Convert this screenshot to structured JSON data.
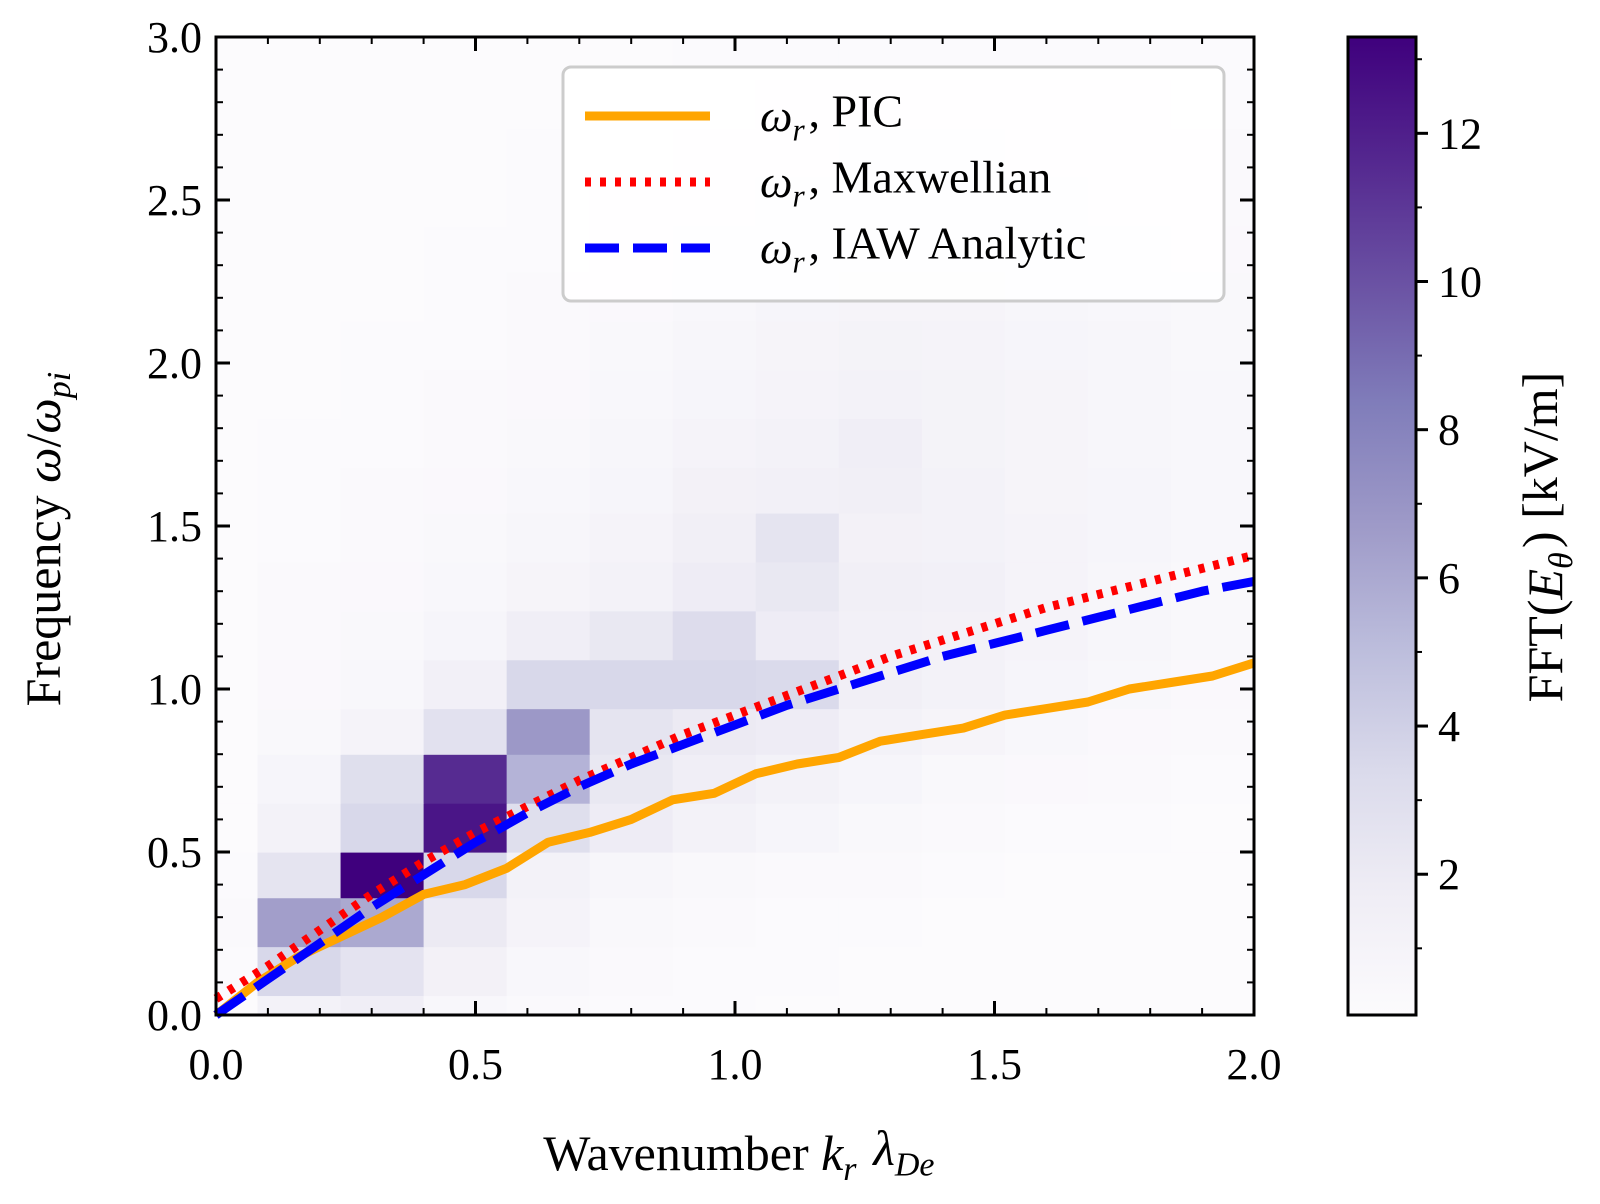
{
  "chart_data": {
    "type": "heatmap",
    "xlabel": "Wavenumber k_r λ_De",
    "ylabel": "Frequency ω/ω_pi",
    "colorbar_label": "FFT(E_θ) [kV/m]",
    "xlim": [
      0.0,
      2.0
    ],
    "ylim": [
      0.0,
      3.0
    ],
    "xticks": [
      "0.0",
      "0.5",
      "1.0",
      "1.5",
      "2.0"
    ],
    "yticks": [
      "0.0",
      "0.5",
      "1.0",
      "1.5",
      "2.0",
      "2.5",
      "3.0"
    ],
    "colorbar_ticks": [
      "2",
      "4",
      "6",
      "8",
      "10",
      "12"
    ],
    "colorbar_range": [
      0.1,
      13.3
    ],
    "colormap": "Purples",
    "grid": false,
    "legend_position": "top-right",
    "heatmap": {
      "x_edges": [
        0.0,
        0.08,
        0.24,
        0.4,
        0.56,
        0.72,
        0.88,
        1.04,
        1.2,
        1.36,
        1.52,
        1.68,
        1.84,
        2.0
      ],
      "y_edges": [
        0.0,
        0.06,
        0.21,
        0.36,
        0.5,
        0.65,
        0.8,
        0.94,
        1.09,
        1.24,
        1.39,
        1.54,
        1.68,
        1.83,
        1.98,
        2.13,
        2.28,
        2.42,
        2.57,
        2.72,
        2.87,
        3.0
      ],
      "values": [
        [
          0.1,
          1.2,
          1.6,
          0.6,
          0.3,
          0.2,
          0.2,
          0.1,
          0.1,
          0.1,
          0.1,
          0.1,
          0.1
        ],
        [
          0.2,
          3.5,
          2.6,
          1.3,
          0.6,
          0.3,
          0.2,
          0.2,
          0.1,
          0.1,
          0.1,
          0.1,
          0.1
        ],
        [
          0.3,
          6.5,
          6.0,
          2.0,
          1.0,
          0.5,
          0.3,
          0.2,
          0.2,
          0.1,
          0.1,
          0.1,
          0.1
        ],
        [
          0.2,
          2.5,
          13.3,
          3.5,
          1.2,
          0.7,
          0.5,
          0.3,
          0.3,
          0.2,
          0.1,
          0.1,
          0.1
        ],
        [
          0.1,
          1.2,
          3.5,
          12.4,
          3.0,
          1.8,
          1.2,
          0.8,
          0.5,
          0.3,
          0.2,
          0.2,
          0.1
        ],
        [
          0.1,
          0.8,
          3.0,
          11.5,
          5.5,
          2.2,
          1.6,
          1.2,
          0.8,
          0.5,
          0.4,
          0.3,
          0.2
        ],
        [
          0.1,
          0.5,
          1.0,
          2.8,
          6.8,
          2.5,
          2.0,
          1.8,
          1.2,
          0.9,
          0.6,
          0.4,
          0.3
        ],
        [
          0.1,
          0.4,
          0.6,
          1.4,
          3.5,
          3.5,
          3.5,
          3.4,
          1.5,
          1.2,
          0.8,
          0.6,
          0.4
        ],
        [
          0.1,
          0.3,
          0.5,
          0.8,
          1.6,
          2.2,
          3.2,
          1.8,
          1.4,
          1.3,
          1.0,
          0.7,
          0.5
        ],
        [
          0.1,
          0.3,
          0.4,
          0.6,
          0.9,
          1.2,
          1.8,
          2.2,
          1.5,
          1.4,
          1.0,
          0.7,
          0.5
        ],
        [
          0.1,
          0.2,
          0.3,
          0.5,
          0.7,
          1.0,
          1.5,
          2.5,
          1.3,
          1.2,
          1.0,
          0.8,
          0.6
        ],
        [
          0.1,
          0.2,
          0.3,
          0.4,
          0.6,
          0.8,
          1.3,
          1.4,
          1.5,
          1.2,
          0.9,
          0.8,
          0.6
        ],
        [
          0.1,
          0.2,
          0.2,
          0.3,
          0.5,
          0.7,
          1.0,
          1.2,
          1.6,
          1.1,
          0.9,
          0.7,
          0.6
        ],
        [
          0.1,
          0.1,
          0.2,
          0.3,
          0.4,
          0.6,
          0.8,
          1.0,
          1.2,
          1.1,
          0.9,
          0.7,
          0.6
        ],
        [
          0.1,
          0.1,
          0.2,
          0.2,
          0.3,
          0.5,
          0.7,
          0.9,
          1.1,
          1.0,
          0.8,
          0.7,
          0.5
        ],
        [
          0.1,
          0.1,
          0.1,
          0.2,
          0.3,
          0.4,
          0.6,
          0.8,
          0.9,
          0.9,
          0.7,
          0.6,
          0.5
        ],
        [
          0.1,
          0.1,
          0.1,
          0.2,
          0.2,
          0.3,
          0.5,
          0.6,
          0.7,
          0.7,
          0.6,
          0.5,
          0.4
        ],
        [
          0.1,
          0.1,
          0.1,
          0.1,
          0.2,
          0.3,
          0.4,
          0.5,
          0.6,
          0.6,
          0.5,
          0.4,
          0.3
        ],
        [
          0.1,
          0.1,
          0.1,
          0.1,
          0.2,
          0.2,
          0.3,
          0.4,
          0.5,
          0.5,
          0.4,
          0.3,
          0.3
        ],
        [
          0.1,
          0.1,
          0.1,
          0.1,
          0.1,
          0.2,
          0.2,
          0.3,
          0.3,
          0.3,
          0.3,
          0.3,
          0.2
        ],
        [
          0.1,
          0.1,
          0.1,
          0.1,
          0.1,
          0.1,
          0.2,
          0.2,
          0.2,
          0.2,
          0.2,
          0.2,
          0.2
        ]
      ]
    },
    "series": [
      {
        "name": "ω_r, PIC",
        "style": "solid",
        "color": "#FFA500",
        "x": [
          0.0,
          0.08,
          0.16,
          0.24,
          0.32,
          0.4,
          0.48,
          0.56,
          0.64,
          0.72,
          0.8,
          0.88,
          0.96,
          1.04,
          1.12,
          1.2,
          1.28,
          1.36,
          1.44,
          1.52,
          1.6,
          1.68,
          1.76,
          1.84,
          1.92,
          2.0
        ],
        "y": [
          0.0,
          0.1,
          0.18,
          0.24,
          0.3,
          0.37,
          0.4,
          0.45,
          0.53,
          0.56,
          0.6,
          0.66,
          0.68,
          0.74,
          0.77,
          0.79,
          0.84,
          0.86,
          0.88,
          0.92,
          0.94,
          0.96,
          1.0,
          1.02,
          1.04,
          1.08
        ]
      },
      {
        "name": "ω_r, Maxwellian",
        "style": "dotted",
        "color": "#FF0000",
        "x": [
          0.0,
          0.1,
          0.2,
          0.3,
          0.4,
          0.5,
          0.6,
          0.7,
          0.8,
          0.9,
          1.0,
          1.1,
          1.2,
          1.3,
          1.4,
          1.5,
          1.6,
          1.7,
          1.8,
          1.9,
          2.0
        ],
        "y": [
          0.05,
          0.15,
          0.26,
          0.37,
          0.47,
          0.56,
          0.64,
          0.72,
          0.79,
          0.86,
          0.92,
          0.98,
          1.04,
          1.1,
          1.15,
          1.2,
          1.25,
          1.29,
          1.33,
          1.37,
          1.41
        ]
      },
      {
        "name": "ω_r, IAW Analytic",
        "style": "dashed",
        "color": "#0000FF",
        "x": [
          0.0,
          0.1,
          0.2,
          0.3,
          0.4,
          0.5,
          0.6,
          0.7,
          0.8,
          0.9,
          1.0,
          1.1,
          1.2,
          1.3,
          1.4,
          1.5,
          1.6,
          1.7,
          1.8,
          1.9,
          2.0
        ],
        "y": [
          0.0,
          0.11,
          0.22,
          0.33,
          0.43,
          0.53,
          0.62,
          0.7,
          0.77,
          0.83,
          0.89,
          0.95,
          1.0,
          1.05,
          1.1,
          1.14,
          1.18,
          1.22,
          1.26,
          1.3,
          1.33
        ]
      }
    ]
  }
}
